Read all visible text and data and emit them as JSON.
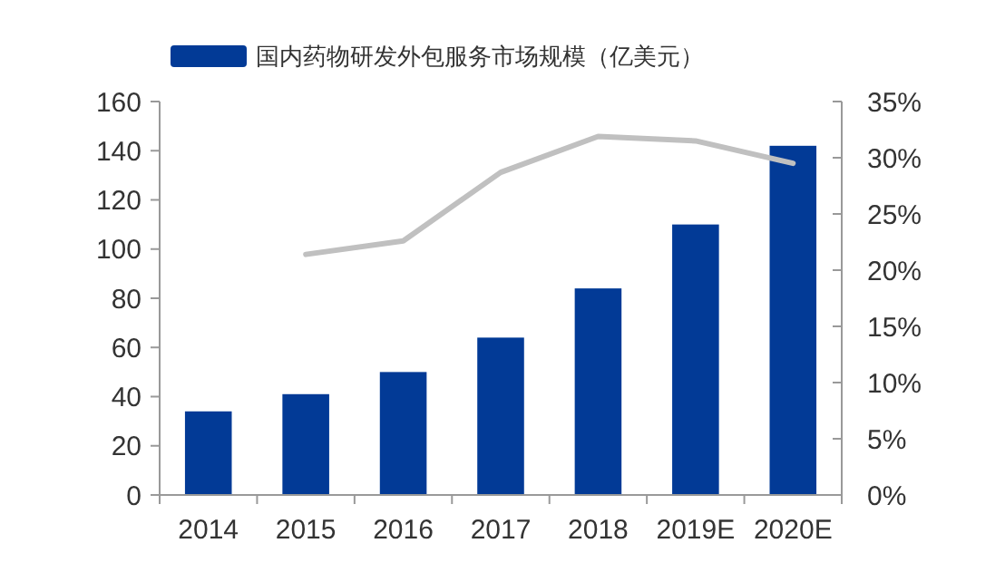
{
  "chart_data": {
    "type": "bar",
    "categories": [
      "2014",
      "2015",
      "2016",
      "2017",
      "2018",
      "2019E",
      "2020E"
    ],
    "series": [
      {
        "name": "国内药物研发外包服务市场规模（亿美元）",
        "color": "#023a96",
        "values": [
          34,
          41,
          50,
          64,
          84,
          110,
          142
        ]
      },
      {
        "type": "line",
        "axis": "y2",
        "color": "#c0c0c0",
        "values": [
          null,
          21.4,
          22.6,
          28.7,
          31.9,
          31.5,
          29.5
        ]
      }
    ],
    "ylim": [
      0,
      160
    ],
    "yticks": [
      0,
      20,
      40,
      60,
      80,
      100,
      120,
      140,
      160
    ],
    "y2lim": [
      0,
      35
    ],
    "y2ticks": [
      {
        "value": 0,
        "label": "0%"
      },
      {
        "value": 5,
        "label": "5%"
      },
      {
        "value": 10,
        "label": "10%"
      },
      {
        "value": 15,
        "label": "15%"
      },
      {
        "value": 20,
        "label": "20%"
      },
      {
        "value": 25,
        "label": "25%"
      },
      {
        "value": 30,
        "label": "30%"
      },
      {
        "value": 35,
        "label": "35%"
      }
    ],
    "legend": "top",
    "grid": false
  }
}
